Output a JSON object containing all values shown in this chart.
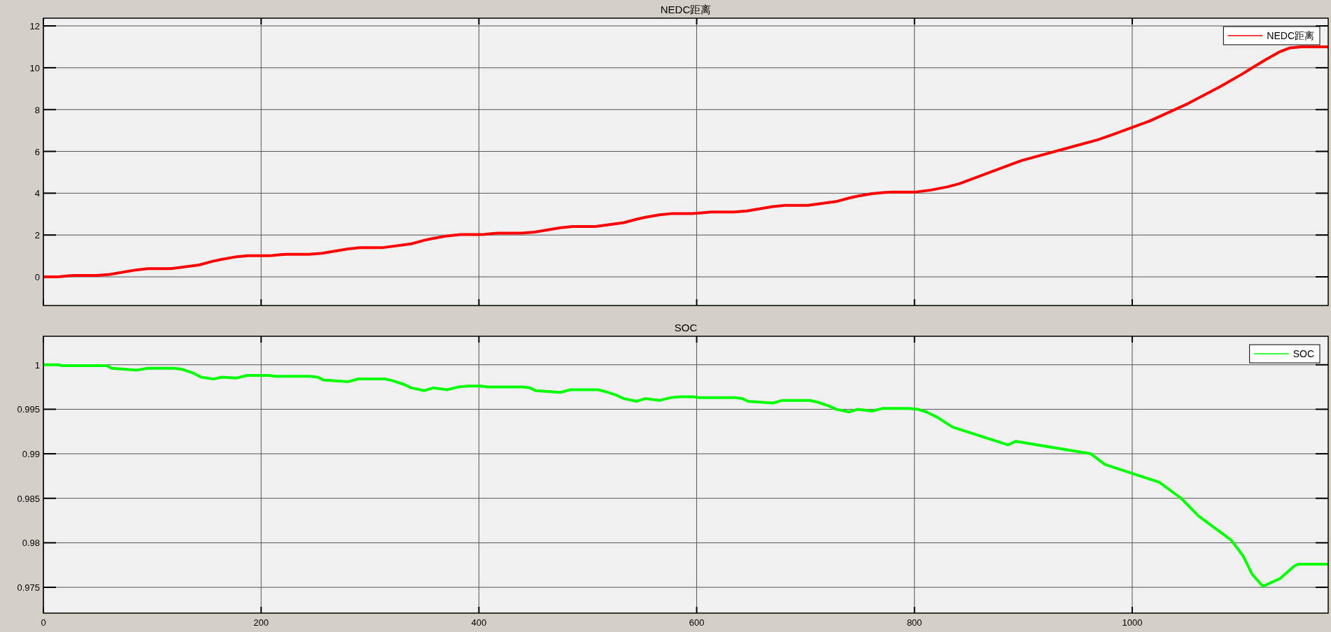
{
  "chart_data": [
    {
      "type": "line",
      "title": "NEDC距离",
      "xlim": [
        0,
        1180
      ],
      "xticks": [
        0,
        200,
        400,
        600,
        800,
        1000
      ],
      "ylim": [
        -1.37,
        12.37
      ],
      "yticks": [
        0,
        2,
        4,
        6,
        8,
        10,
        12
      ],
      "grid": true,
      "legend": "top right",
      "marker": "none",
      "tick_labels": "y",
      "series": [
        {
          "name": "NEDC距离",
          "color": "#ff0000",
          "x": [
            0,
            11,
            15,
            23,
            28,
            49,
            61,
            85,
            96,
            117,
            143,
            155,
            163,
            176,
            188,
            195,
            206,
            210,
            218,
            223,
            244,
            256,
            280,
            291,
            312,
            338,
            350,
            358,
            371,
            383,
            390,
            401,
            405,
            413,
            418,
            439,
            451,
            475,
            486,
            507,
            533,
            545,
            553,
            566,
            578,
            585,
            596,
            600,
            608,
            613,
            634,
            646,
            670,
            681,
            702,
            728,
            740,
            748,
            761,
            773,
            780,
            800,
            815,
            830,
            841,
            891,
            899,
            968,
            981,
            1016,
            1051,
            1081,
            1101,
            1111,
            1123,
            1135,
            1145,
            1155,
            1180
          ],
          "values": [
            0,
            0,
            0.01,
            0.05,
            0.07,
            0.07,
            0.12,
            0.33,
            0.39,
            0.39,
            0.57,
            0.74,
            0.83,
            0.95,
            1.01,
            1.01,
            1.01,
            1.02,
            1.06,
            1.08,
            1.08,
            1.13,
            1.34,
            1.4,
            1.4,
            1.58,
            1.75,
            1.84,
            1.96,
            2.02,
            2.02,
            2.02,
            2.03,
            2.07,
            2.09,
            2.09,
            2.14,
            2.35,
            2.41,
            2.41,
            2.59,
            2.76,
            2.85,
            2.97,
            3.03,
            3.03,
            3.03,
            3.04,
            3.08,
            3.1,
            3.1,
            3.15,
            3.36,
            3.42,
            3.42,
            3.6,
            3.77,
            3.86,
            3.98,
            4.04,
            4.05,
            4.05,
            4.15,
            4.3,
            4.45,
            5.42,
            5.57,
            6.55,
            6.78,
            7.45,
            8.28,
            9.1,
            9.7,
            10.02,
            10.4,
            10.75,
            10.95,
            11.0,
            11.0
          ]
        }
      ]
    },
    {
      "type": "line",
      "title": "SOC",
      "xlim": [
        0,
        1180
      ],
      "xticks": [
        0,
        200,
        400,
        600,
        800,
        1000
      ],
      "ylim": [
        0.9721,
        1.0032
      ],
      "yticks": [
        0.975,
        0.98,
        0.985,
        0.99,
        0.995,
        1
      ],
      "grid": true,
      "legend": "top right",
      "marker": "none",
      "series": [
        {
          "name": "SOC",
          "color": "#00ff00",
          "x": [
            0,
            14,
            17,
            52,
            58,
            63,
            86,
            96,
            120,
            127,
            137,
            145,
            156,
            164,
            177,
            187,
            195,
            207,
            213,
            245,
            252,
            257,
            280,
            289,
            314,
            321,
            331,
            338,
            350,
            358,
            371,
            381,
            390,
            402,
            408,
            440,
            447,
            452,
            475,
            484,
            509,
            516,
            526,
            533,
            545,
            553,
            566,
            576,
            585,
            597,
            603,
            635,
            642,
            647,
            670,
            679,
            704,
            711,
            721,
            728,
            740,
            748,
            761,
            771,
            795,
            803,
            811,
            821,
            835,
            886,
            893,
            962,
            975,
            1025,
            1045,
            1061,
            1091,
            1102,
            1110,
            1120,
            1136,
            1149,
            1153,
            1180
          ],
          "values": [
            1.0,
            1.0,
            0.9999,
            0.9999,
            0.9999,
            0.9996,
            0.9994,
            0.9996,
            0.9996,
            0.9995,
            0.9991,
            0.9986,
            0.9984,
            0.9986,
            0.9985,
            0.9988,
            0.9988,
            0.9988,
            0.9987,
            0.9987,
            0.9986,
            0.9983,
            0.9981,
            0.9984,
            0.9984,
            0.9982,
            0.9978,
            0.9974,
            0.9971,
            0.9974,
            0.9972,
            0.9975,
            0.9976,
            0.9976,
            0.9975,
            0.9975,
            0.9974,
            0.9971,
            0.9969,
            0.9972,
            0.9972,
            0.997,
            0.9966,
            0.9962,
            0.9959,
            0.9962,
            0.996,
            0.9963,
            0.9964,
            0.9964,
            0.9963,
            0.9963,
            0.9962,
            0.9959,
            0.9957,
            0.996,
            0.996,
            0.9958,
            0.9954,
            0.995,
            0.9947,
            0.995,
            0.9948,
            0.9951,
            0.9951,
            0.995,
            0.9947,
            0.9941,
            0.993,
            0.991,
            0.9914,
            0.99,
            0.9888,
            0.9868,
            0.985,
            0.983,
            0.9803,
            0.9785,
            0.9765,
            0.9751,
            0.976,
            0.9774,
            0.9776,
            0.9776
          ]
        }
      ]
    }
  ]
}
